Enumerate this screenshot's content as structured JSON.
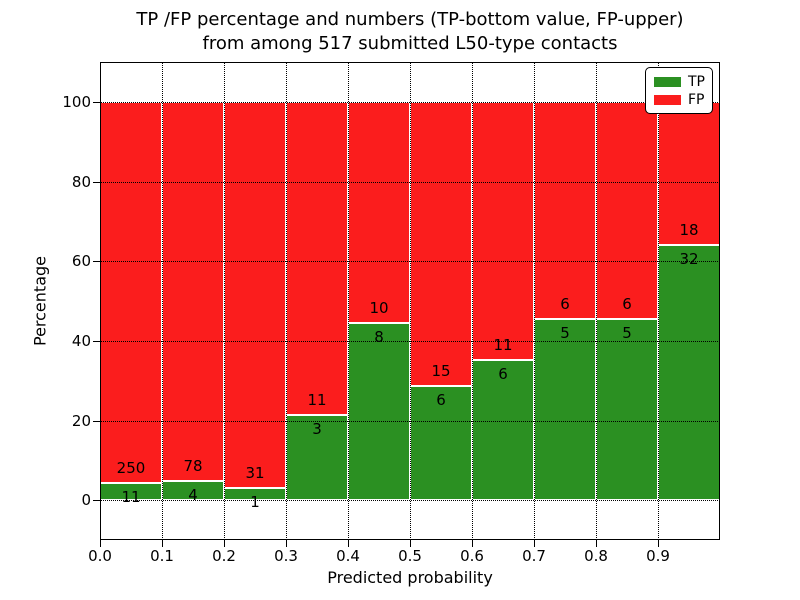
{
  "title": {
    "line1": "TP /FP percentage and numbers (TP-bottom value, FP-upper)",
    "line2": "from among 517 submitted L50-type contacts"
  },
  "chart_data": {
    "type": "bar",
    "stacked": true,
    "normalized_to": 100,
    "total_contacts": 517,
    "bin_edges": [
      0.0,
      0.1,
      0.2,
      0.3,
      0.4,
      0.5,
      0.6,
      0.7,
      0.8,
      0.9,
      1.0
    ],
    "categories": [
      "0.0-0.1",
      "0.1-0.2",
      "0.2-0.3",
      "0.3-0.4",
      "0.4-0.5",
      "0.5-0.6",
      "0.6-0.7",
      "0.7-0.8",
      "0.8-0.9",
      "0.9-1.0"
    ],
    "series": [
      {
        "name": "TP",
        "color": "#2b9022",
        "counts": [
          11,
          4,
          1,
          3,
          8,
          6,
          6,
          5,
          5,
          32
        ]
      },
      {
        "name": "FP",
        "color": "#fb1d1d",
        "counts": [
          250,
          78,
          31,
          11,
          10,
          15,
          11,
          6,
          6,
          18
        ]
      }
    ],
    "tp_percent": [
      4.21,
      4.88,
      3.13,
      21.43,
      44.44,
      28.57,
      35.29,
      45.45,
      45.45,
      64.0
    ],
    "xlabel": "Predicted probability",
    "ylabel": "Percentage",
    "xticks": [
      "0.0",
      "0.1",
      "0.2",
      "0.3",
      "0.4",
      "0.5",
      "0.6",
      "0.7",
      "0.8",
      "0.9"
    ],
    "xtick_values": [
      0.0,
      0.1,
      0.2,
      0.3,
      0.4,
      0.5,
      0.6,
      0.7,
      0.8,
      0.9
    ],
    "yticks": [
      0,
      20,
      40,
      60,
      80,
      100
    ],
    "xlim": [
      0.0,
      1.0
    ],
    "ylim": [
      -10,
      110
    ],
    "grid": {
      "style": "dotted",
      "color": "#000000"
    },
    "bar_edge_color": "#ffffff",
    "legend": {
      "position": "upper right",
      "entries": [
        "TP",
        "FP"
      ]
    }
  }
}
